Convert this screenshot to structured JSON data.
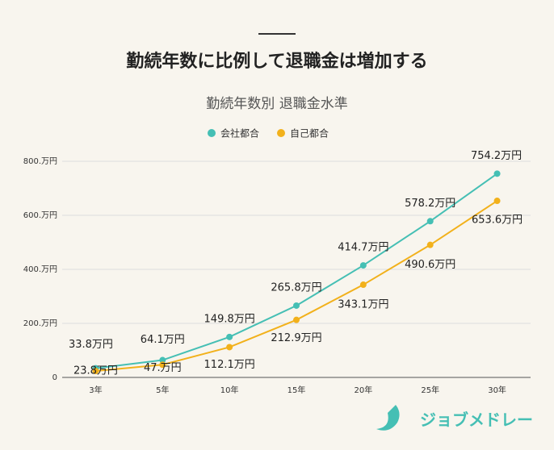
{
  "header": {
    "title": "勤続年数に比例して退職金は増加する"
  },
  "logo": "ジョブメドレー",
  "chart_data": {
    "type": "line",
    "title": "勤続年数別 退職金水準",
    "categories": [
      "3年",
      "5年",
      "10年",
      "15年",
      "20年",
      "25年",
      "30年"
    ],
    "series": [
      {
        "name": "会社都合",
        "color": "#45bfb4",
        "values": [
          33.8,
          64.1,
          149.8,
          265.8,
          414.7,
          578.2,
          754.2
        ],
        "value_labels": [
          "33.8万円",
          "64.1万円",
          "149.8万円",
          "265.8万円",
          "414.7万円",
          "578.2万円",
          "754.2万円"
        ]
      },
      {
        "name": "自己都合",
        "color": "#f2b11b",
        "values": [
          23.8,
          47,
          112.1,
          212.9,
          343.1,
          490.6,
          653.6
        ],
        "value_labels": [
          "23.8万円",
          "47.万円",
          "112.1万円",
          "212.9万円",
          "343.1万円",
          "490.6万円",
          "653.6万円"
        ]
      }
    ],
    "ylim": [
      0,
      800
    ],
    "yticks": [
      0,
      {
        "value": 200,
        "label": "200.万円"
      },
      {
        "value": 400,
        "label": "400.万円"
      },
      {
        "value": 600,
        "label": "600.万円"
      },
      {
        "value": 800,
        "label": "800.万円"
      }
    ],
    "grid": true,
    "legend": "top"
  }
}
